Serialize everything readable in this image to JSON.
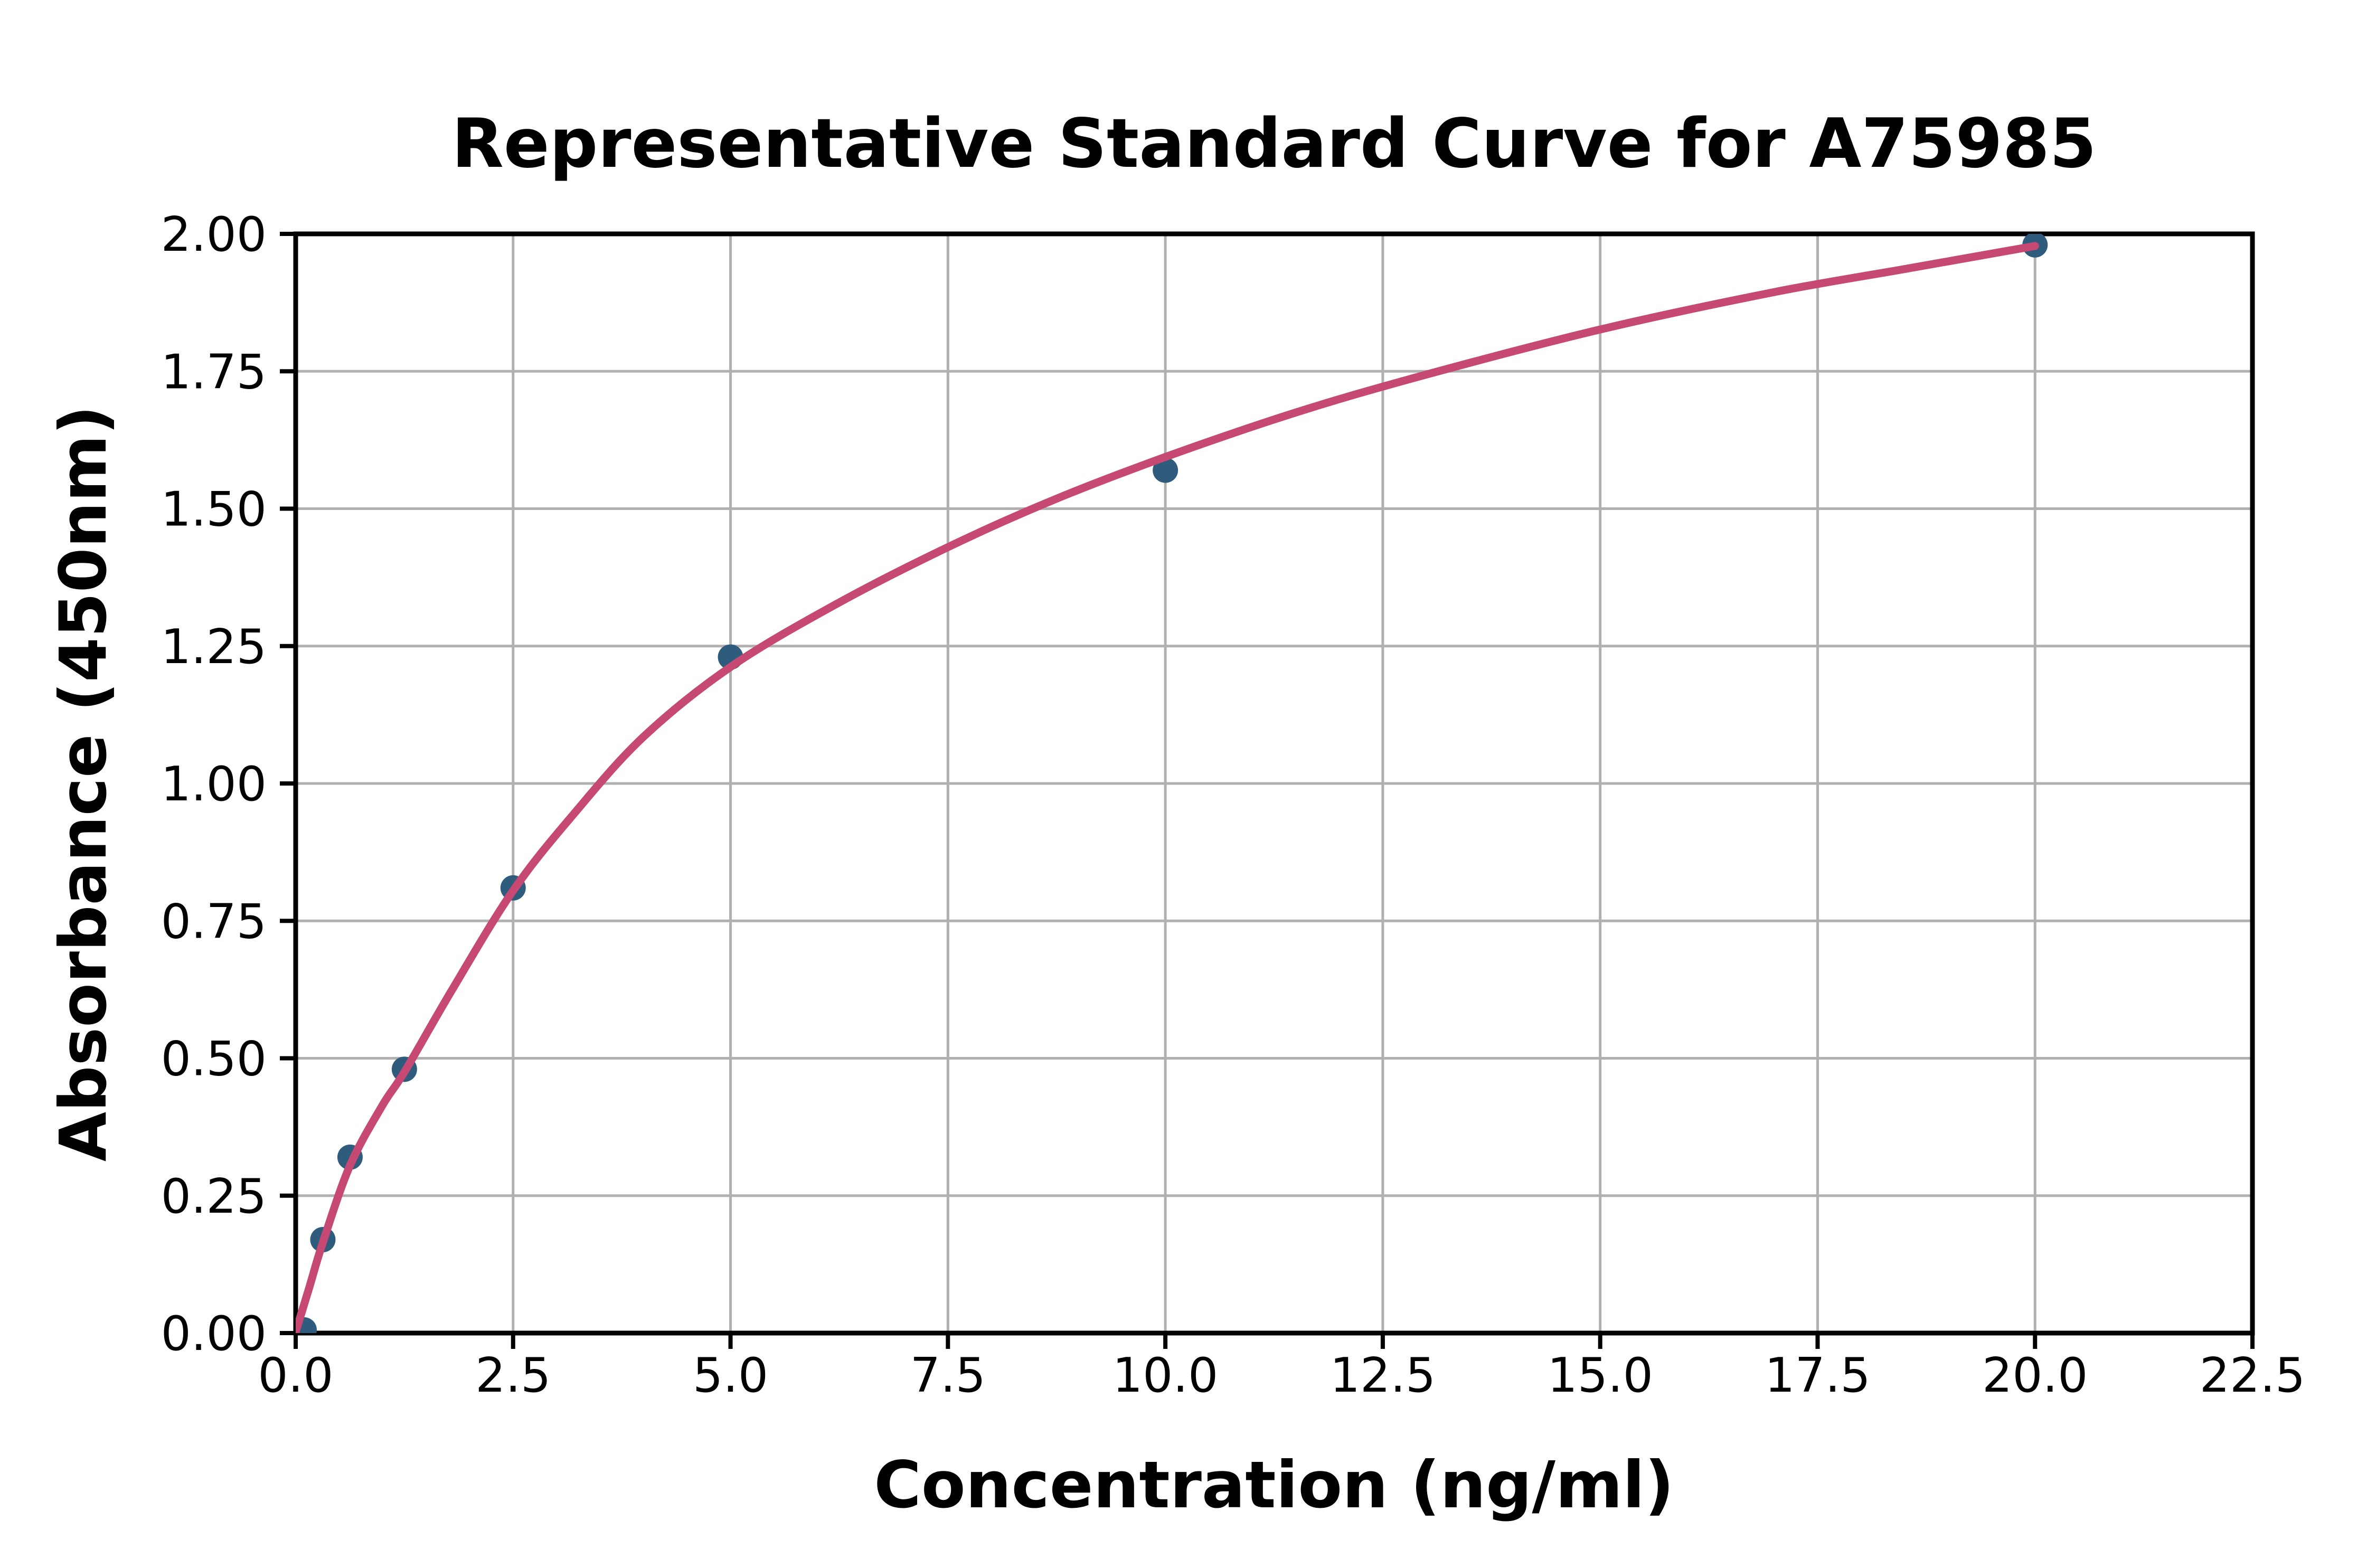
{
  "page": {
    "background_color": "#ffffff"
  },
  "chart_data": {
    "type": "scatter",
    "title": "Representative Standard Curve for A75985",
    "xlabel": "Concentration (ng/ml)",
    "ylabel": "Absorbance (450nm)",
    "xlim": [
      0,
      22.5
    ],
    "ylim": [
      0,
      2.0
    ],
    "grid": true,
    "legend_position": "none",
    "x_ticks": [
      0,
      2.5,
      5,
      7.5,
      10,
      12.5,
      15,
      17.5,
      20,
      22.5
    ],
    "x_tick_labels": [
      "0.0",
      "2.5",
      "5.0",
      "7.5",
      "10.0",
      "12.5",
      "15.0",
      "17.5",
      "20.0",
      "22.5"
    ],
    "y_ticks": [
      0,
      0.25,
      0.5,
      0.75,
      1.0,
      1.25,
      1.5,
      1.75,
      2.0
    ],
    "y_tick_labels": [
      "0.00",
      "0.25",
      "0.50",
      "0.75",
      "1.00",
      "1.25",
      "1.50",
      "1.75",
      "2.00"
    ],
    "series": [
      {
        "name": "standard-points",
        "kind": "scatter",
        "color": "#2f5b7d",
        "marker_radius": 24,
        "points": [
          [
            0,
            0.002
          ],
          [
            0.3125,
            0.17
          ],
          [
            0.625,
            0.32
          ],
          [
            1.25,
            0.48
          ],
          [
            2.5,
            0.81
          ],
          [
            5,
            1.23
          ],
          [
            10,
            1.57
          ],
          [
            20,
            1.98
          ]
        ]
      },
      {
        "name": "fitted-curve",
        "kind": "line",
        "color": "#c54973",
        "line_width": 15,
        "points": [
          [
            0,
            0.002
          ],
          [
            0.16,
            0.085
          ],
          [
            0.3125,
            0.165
          ],
          [
            0.625,
            0.305
          ],
          [
            1.0,
            0.415
          ],
          [
            1.25,
            0.475
          ],
          [
            1.8,
            0.625
          ],
          [
            2.5,
            0.805
          ],
          [
            3.2,
            0.945
          ],
          [
            4.0,
            1.085
          ],
          [
            5.0,
            1.212
          ],
          [
            6.2,
            1.325
          ],
          [
            7.5,
            1.43
          ],
          [
            8.7,
            1.515
          ],
          [
            10.0,
            1.594
          ],
          [
            11.5,
            1.675
          ],
          [
            13.0,
            1.744
          ],
          [
            15.0,
            1.826
          ],
          [
            17.0,
            1.894
          ],
          [
            18.5,
            1.936
          ],
          [
            20.0,
            1.978
          ]
        ]
      }
    ],
    "colors": {
      "grid": "#b0b0b0",
      "axis": "#000000",
      "text": "#000000",
      "background": "#ffffff"
    }
  }
}
